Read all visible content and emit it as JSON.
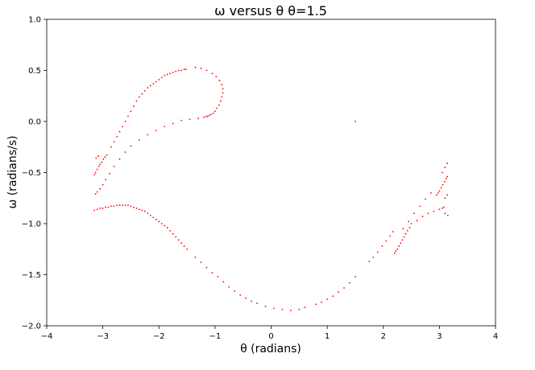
{
  "chart_data": {
    "type": "scatter",
    "title": "ω versus θ   θ=1.5",
    "xlabel": "θ (radians)",
    "ylabel": "ω (radians/s)",
    "xlim": [
      -4,
      4
    ],
    "ylim": [
      -2.0,
      1.0
    ],
    "xticks": [
      -4,
      -3,
      -2,
      -1,
      0,
      1,
      2,
      3,
      4
    ],
    "xtick_labels": [
      "−4",
      "−3",
      "−2",
      "−1",
      "0",
      "1",
      "2",
      "3",
      "4"
    ],
    "yticks": [
      -2.0,
      -1.5,
      -1.0,
      -0.5,
      0.0,
      0.5,
      1.0
    ],
    "ytick_labels": [
      "−2.0",
      "−1.5",
      "−1.0",
      "−0.5",
      "0.0",
      "0.5",
      "1.0"
    ],
    "grid": false,
    "marker_color": "#ff0000",
    "series": [
      {
        "points": [
          [
            -3.15,
            -0.52
          ],
          [
            -3.13,
            -0.5
          ],
          [
            -3.1,
            -0.47
          ],
          [
            -3.07,
            -0.44
          ],
          [
            -3.05,
            -0.42
          ],
          [
            -3.02,
            -0.4
          ],
          [
            -2.99,
            -0.37
          ],
          [
            -2.96,
            -0.35
          ],
          [
            -2.93,
            -0.33
          ],
          [
            -3.12,
            -0.36
          ],
          [
            -3.08,
            -0.34
          ],
          [
            -2.85,
            -0.25
          ],
          [
            -2.8,
            -0.2
          ],
          [
            -2.75,
            -0.15
          ],
          [
            -2.7,
            -0.1
          ],
          [
            -2.65,
            -0.05
          ],
          [
            -2.6,
            0.0
          ],
          [
            -2.55,
            0.05
          ],
          [
            -2.5,
            0.1
          ],
          [
            -2.45,
            0.15
          ],
          [
            -2.4,
            0.2
          ],
          [
            -2.35,
            0.24
          ],
          [
            -2.3,
            0.27
          ],
          [
            -2.25,
            0.3
          ],
          [
            -2.2,
            0.33
          ],
          [
            -2.15,
            0.35
          ],
          [
            -2.1,
            0.37
          ],
          [
            -2.05,
            0.39
          ],
          [
            -2.0,
            0.41
          ],
          [
            -1.95,
            0.43
          ],
          [
            -1.9,
            0.45
          ],
          [
            -1.85,
            0.46
          ],
          [
            -1.8,
            0.47
          ],
          [
            -1.75,
            0.48
          ],
          [
            -1.7,
            0.49
          ],
          [
            -1.65,
            0.5
          ],
          [
            -1.6,
            0.5
          ],
          [
            -1.55,
            0.51
          ],
          [
            -1.52,
            0.51
          ],
          [
            -1.35,
            0.53
          ],
          [
            -1.25,
            0.52
          ],
          [
            -1.15,
            0.5
          ],
          [
            -1.05,
            0.47
          ],
          [
            -0.98,
            0.44
          ],
          [
            -0.92,
            0.4
          ],
          [
            -0.88,
            0.36
          ],
          [
            -0.86,
            0.32
          ],
          [
            -0.86,
            0.28
          ],
          [
            -0.88,
            0.24
          ],
          [
            -0.9,
            0.2
          ],
          [
            -0.93,
            0.16
          ],
          [
            -0.97,
            0.13
          ],
          [
            -1.0,
            0.1
          ],
          [
            -1.03,
            0.08
          ],
          [
            -1.07,
            0.07
          ],
          [
            -1.1,
            0.06
          ],
          [
            -1.13,
            0.05
          ],
          [
            -1.16,
            0.05
          ],
          [
            -1.2,
            0.04
          ],
          [
            -1.3,
            0.03
          ],
          [
            -1.45,
            0.02
          ],
          [
            -1.6,
            0.01
          ],
          [
            -1.75,
            -0.02
          ],
          [
            -1.9,
            -0.05
          ],
          [
            -2.05,
            -0.09
          ],
          [
            -2.2,
            -0.13
          ],
          [
            -2.35,
            -0.18
          ],
          [
            -2.5,
            -0.24
          ],
          [
            -2.6,
            -0.3
          ],
          [
            -2.7,
            -0.37
          ],
          [
            -2.8,
            -0.44
          ],
          [
            -2.88,
            -0.51
          ],
          [
            -2.95,
            -0.57
          ],
          [
            -3.0,
            -0.62
          ],
          [
            -3.05,
            -0.66
          ],
          [
            -3.1,
            -0.69
          ],
          [
            -3.13,
            -0.71
          ],
          [
            -3.15,
            -0.87
          ],
          [
            -3.1,
            -0.86
          ],
          [
            -3.05,
            -0.85
          ],
          [
            -3.0,
            -0.85
          ],
          [
            -2.95,
            -0.84
          ],
          [
            -2.9,
            -0.84
          ],
          [
            -2.85,
            -0.83
          ],
          [
            -2.8,
            -0.83
          ],
          [
            -2.75,
            -0.82
          ],
          [
            -2.7,
            -0.82
          ],
          [
            -2.65,
            -0.82
          ],
          [
            -2.6,
            -0.82
          ],
          [
            -2.55,
            -0.82
          ],
          [
            -2.5,
            -0.83
          ],
          [
            -2.45,
            -0.84
          ],
          [
            -2.4,
            -0.85
          ],
          [
            -2.35,
            -0.86
          ],
          [
            -2.3,
            -0.87
          ],
          [
            -2.25,
            -0.88
          ],
          [
            -2.2,
            -0.9
          ],
          [
            -2.15,
            -0.92
          ],
          [
            -2.1,
            -0.94
          ],
          [
            -2.05,
            -0.96
          ],
          [
            -2.0,
            -0.98
          ],
          [
            -1.95,
            -1.0
          ],
          [
            -1.9,
            -1.02
          ],
          [
            -1.85,
            -1.04
          ],
          [
            -1.8,
            -1.07
          ],
          [
            -1.75,
            -1.1
          ],
          [
            -1.7,
            -1.13
          ],
          [
            -1.65,
            -1.16
          ],
          [
            -1.6,
            -1.19
          ],
          [
            -1.55,
            -1.22
          ],
          [
            -1.5,
            -1.25
          ],
          [
            -1.35,
            -1.33
          ],
          [
            -1.25,
            -1.38
          ],
          [
            -1.15,
            -1.43
          ],
          [
            -1.05,
            -1.48
          ],
          [
            -0.95,
            -1.52
          ],
          [
            -0.85,
            -1.57
          ],
          [
            -0.75,
            -1.62
          ],
          [
            -0.65,
            -1.66
          ],
          [
            -0.55,
            -1.7
          ],
          [
            -0.45,
            -1.73
          ],
          [
            -0.35,
            -1.76
          ],
          [
            -0.25,
            -1.78
          ],
          [
            -0.1,
            -1.81
          ],
          [
            0.05,
            -1.83
          ],
          [
            0.2,
            -1.84
          ],
          [
            0.35,
            -1.85
          ],
          [
            0.5,
            -1.84
          ],
          [
            0.6,
            -1.82
          ],
          [
            0.8,
            -1.79
          ],
          [
            0.9,
            -1.77
          ],
          [
            1.0,
            -1.74
          ],
          [
            1.1,
            -1.71
          ],
          [
            1.2,
            -1.67
          ],
          [
            1.3,
            -1.63
          ],
          [
            1.4,
            -1.58
          ],
          [
            1.5,
            -1.52
          ],
          [
            1.5,
            0.0
          ],
          [
            1.75,
            -1.37
          ],
          [
            1.82,
            -1.33
          ],
          [
            1.9,
            -1.28
          ],
          [
            1.98,
            -1.22
          ],
          [
            2.05,
            -1.17
          ],
          [
            2.12,
            -1.12
          ],
          [
            2.17,
            -1.08
          ],
          [
            2.2,
            -1.29
          ],
          [
            2.22,
            -1.27
          ],
          [
            2.25,
            -1.25
          ],
          [
            2.28,
            -1.22
          ],
          [
            2.31,
            -1.19
          ],
          [
            2.34,
            -1.16
          ],
          [
            2.37,
            -1.13
          ],
          [
            2.4,
            -1.1
          ],
          [
            2.43,
            -1.07
          ],
          [
            2.47,
            -1.04
          ],
          [
            2.5,
            -1.0
          ],
          [
            2.35,
            -1.05
          ],
          [
            2.45,
            -0.98
          ],
          [
            2.55,
            -0.9
          ],
          [
            2.65,
            -0.83
          ],
          [
            2.75,
            -0.76
          ],
          [
            2.85,
            -0.7
          ],
          [
            2.6,
            -0.97
          ],
          [
            2.7,
            -0.93
          ],
          [
            2.8,
            -0.9
          ],
          [
            2.9,
            -0.88
          ],
          [
            3.0,
            -0.86
          ],
          [
            3.05,
            -0.85
          ],
          [
            3.08,
            -0.84
          ],
          [
            2.95,
            -0.72
          ],
          [
            2.98,
            -0.7
          ],
          [
            3.0,
            -0.68
          ],
          [
            3.03,
            -0.65
          ],
          [
            3.06,
            -0.62
          ],
          [
            3.09,
            -0.59
          ],
          [
            3.12,
            -0.56
          ],
          [
            3.14,
            -0.54
          ],
          [
            3.05,
            -0.5
          ],
          [
            3.1,
            -0.45
          ],
          [
            3.14,
            -0.41
          ],
          [
            3.1,
            -0.75
          ],
          [
            3.14,
            -0.72
          ],
          [
            3.1,
            -0.9
          ],
          [
            3.15,
            -0.92
          ]
        ]
      }
    ]
  }
}
